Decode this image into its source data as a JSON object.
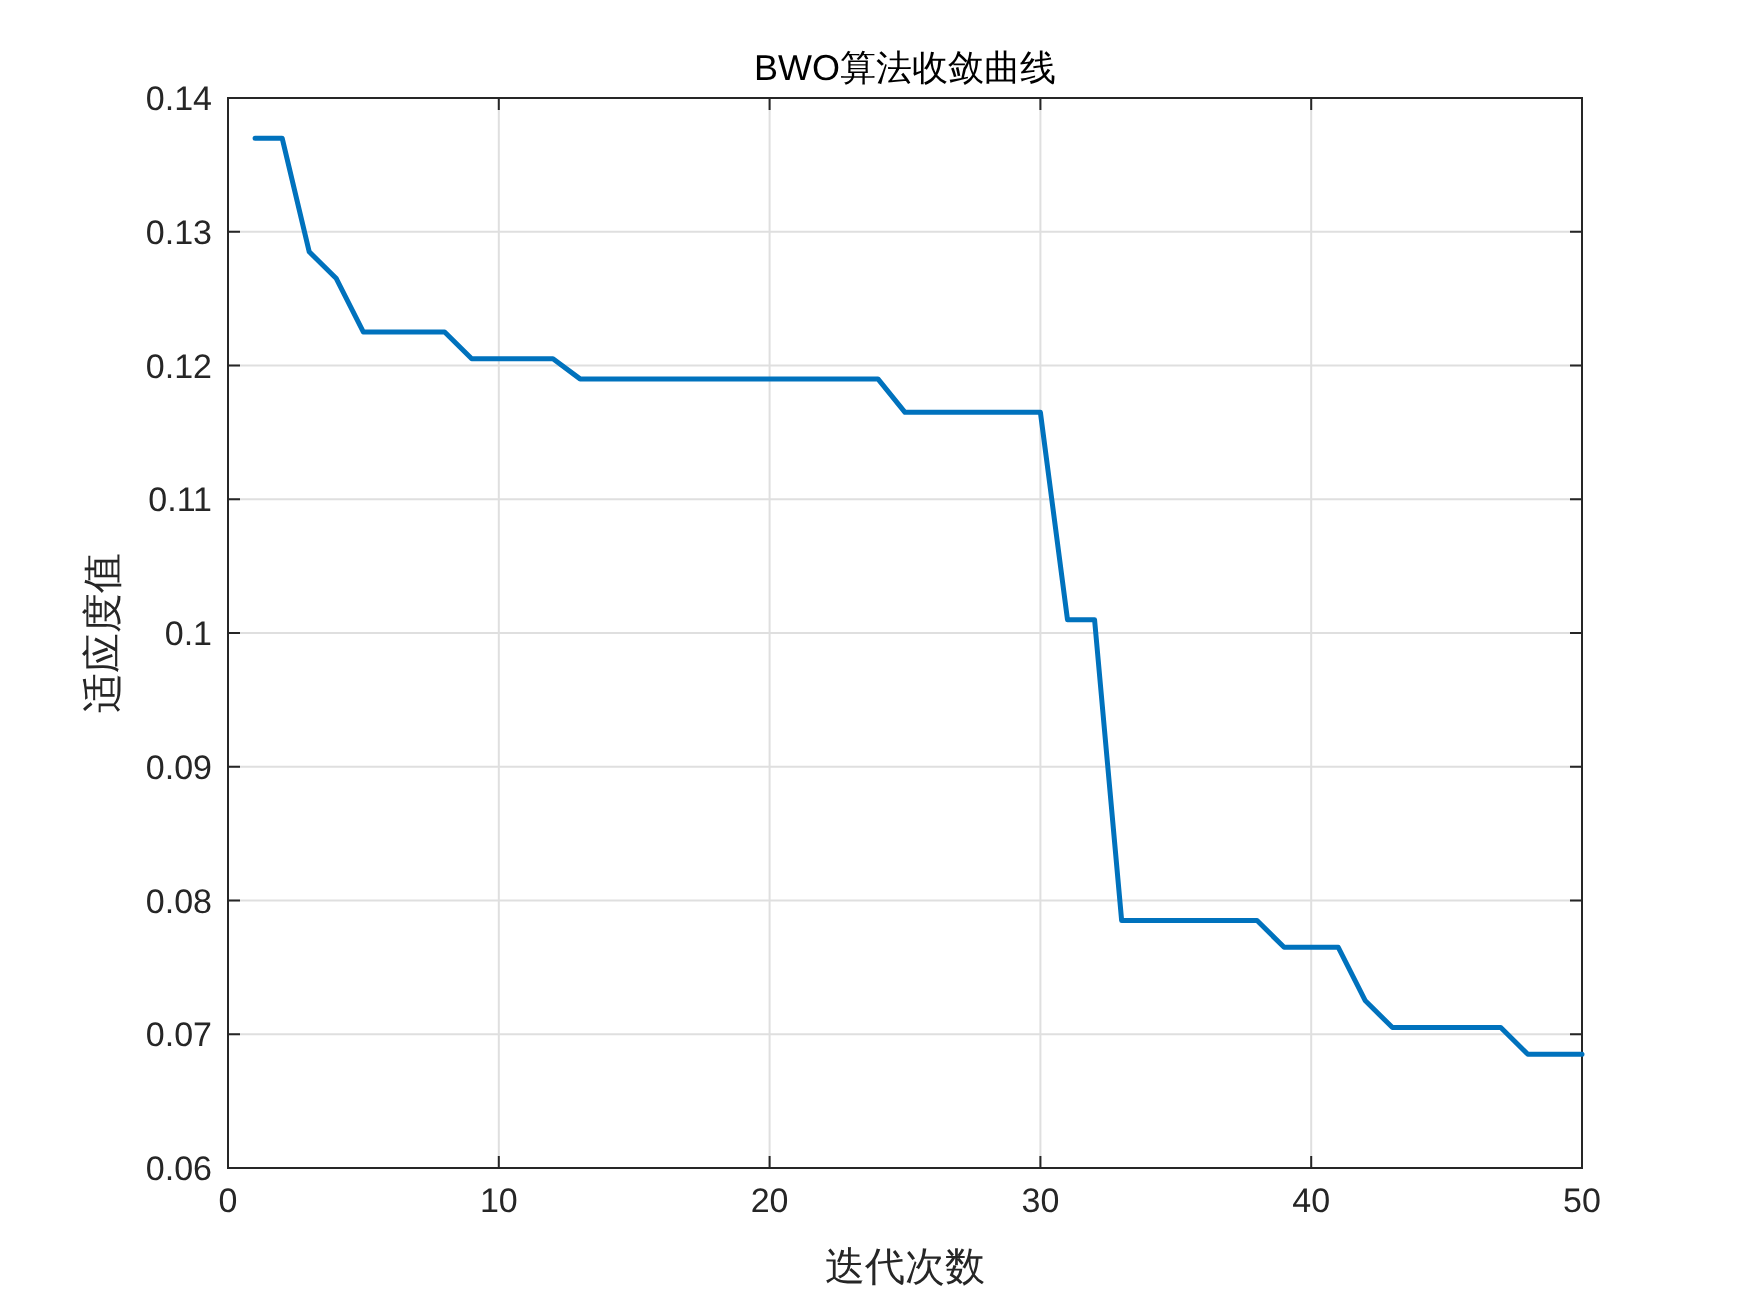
{
  "chart_data": {
    "type": "line",
    "title": "BWO算法收敛曲线",
    "xlabel": "迭代次数",
    "ylabel": "适应度值",
    "x": [
      1,
      2,
      3,
      4,
      5,
      6,
      7,
      8,
      9,
      10,
      11,
      12,
      13,
      14,
      15,
      16,
      17,
      18,
      19,
      20,
      21,
      22,
      23,
      24,
      25,
      26,
      27,
      28,
      29,
      30,
      31,
      32,
      33,
      34,
      35,
      36,
      37,
      38,
      39,
      40,
      41,
      42,
      43,
      44,
      45,
      46,
      47,
      48,
      49,
      50
    ],
    "series": [
      {
        "color": "#0072bd",
        "values": [
          0.137,
          0.137,
          0.1285,
          0.1265,
          0.1225,
          0.1225,
          0.1225,
          0.1225,
          0.1205,
          0.1205,
          0.1205,
          0.1205,
          0.119,
          0.119,
          0.119,
          0.119,
          0.119,
          0.119,
          0.119,
          0.119,
          0.119,
          0.119,
          0.119,
          0.119,
          0.1165,
          0.1165,
          0.1165,
          0.1165,
          0.1165,
          0.1165,
          0.101,
          0.101,
          0.0785,
          0.0785,
          0.0785,
          0.0785,
          0.0785,
          0.0785,
          0.0765,
          0.0765,
          0.0765,
          0.0725,
          0.0705,
          0.0705,
          0.0705,
          0.0705,
          0.0705,
          0.0685,
          0.0685,
          0.0685
        ]
      }
    ],
    "xlim": [
      0,
      50
    ],
    "xticks": [
      0,
      10,
      20,
      30,
      40,
      50
    ],
    "ylim": [
      0.06,
      0.14
    ],
    "yticks": [
      0.06,
      0.07,
      0.08,
      0.09,
      0.1,
      0.11,
      0.12,
      0.13,
      0.14
    ],
    "grid": true,
    "marker": "none",
    "line_style": "solid"
  }
}
